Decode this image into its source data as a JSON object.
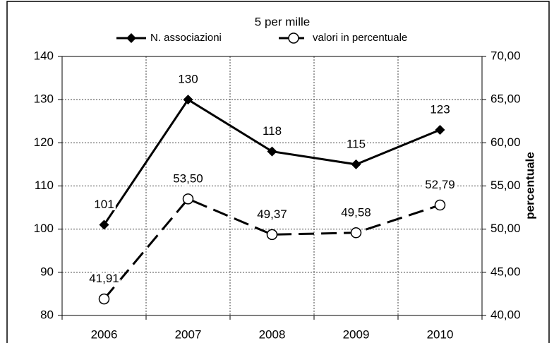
{
  "chart_data": {
    "type": "line",
    "title": "5 per mille",
    "categories": [
      "2006",
      "2007",
      "2008",
      "2009",
      "2010"
    ],
    "series": [
      {
        "name": "N. associazioni",
        "color": "#000000",
        "marker": "diamond",
        "dash": "solid",
        "values": [
          101,
          130,
          118,
          115,
          123
        ]
      },
      {
        "name": "valori in percentuale",
        "color": "#000000",
        "marker": "circle",
        "dash": "dashed",
        "axis": "y2",
        "values": [
          41.91,
          53.5,
          49.37,
          49.58,
          52.79
        ],
        "value_labels": [
          "41,91",
          "53,50",
          "49,37",
          "49,58",
          "52,79"
        ]
      }
    ],
    "ylim": [
      80,
      140
    ],
    "yticks": [
      80,
      90,
      100,
      110,
      120,
      130,
      140
    ],
    "y2lim": [
      40,
      70
    ],
    "y2ticks": [
      {
        "value": 40,
        "label": "40,00"
      },
      {
        "value": 45,
        "label": "45,00"
      },
      {
        "value": 50,
        "label": "50,00"
      },
      {
        "value": 55,
        "label": "55,00"
      },
      {
        "value": 60,
        "label": "60,00"
      },
      {
        "value": 65,
        "label": "65,00"
      },
      {
        "value": 70,
        "label": "70,00"
      }
    ],
    "y2label": "percentuale",
    "grid": true,
    "legend": "top"
  }
}
